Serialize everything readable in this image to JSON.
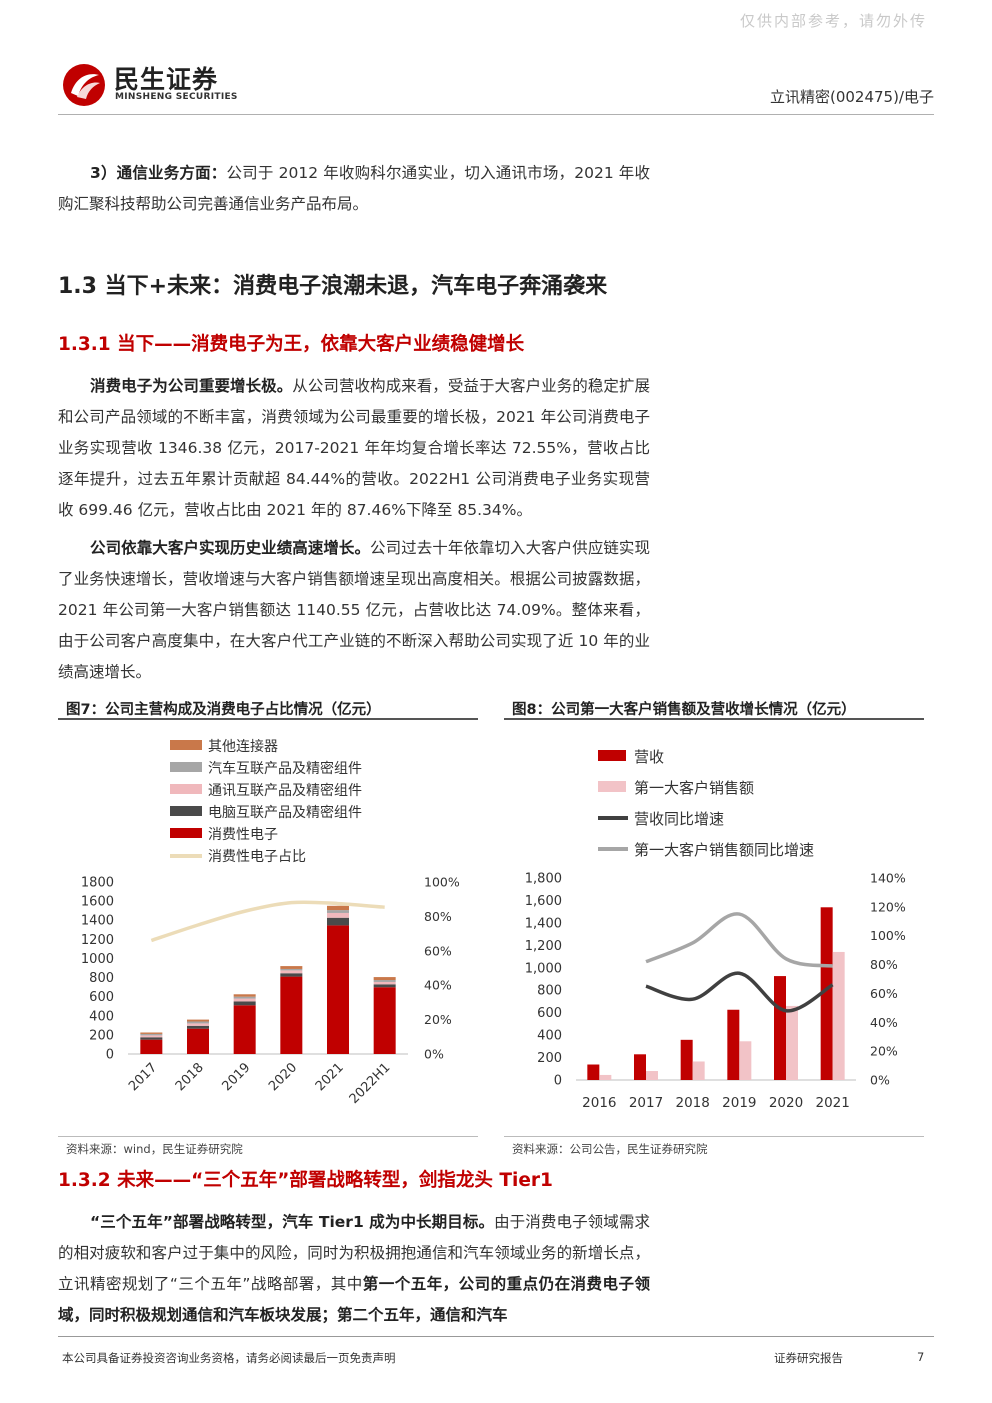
{
  "header": {
    "watermark": "仅供内部参考，请勿外传",
    "logo_cn": "民生证券",
    "logo_en": "MINSHENG SECURITIES",
    "company": "立讯精密(002475)/电子"
  },
  "p_comm": {
    "lead": "3）通信业务方面：",
    "text": "公司于 2012 年收购科尔通实业，切入通讯市场，2021 年收购汇聚科技帮助公司完善通信业务产品布局。"
  },
  "h_1_3": "1.3 当下+未来：消费电子浪潮未退，汽车电子奔涌袭来",
  "h_1_3_1": "1.3.1 当下——消费电子为王，依靠大客户业绩稳健增长",
  "p_consumer": {
    "lead": "消费电子为公司重要增长极。",
    "text": "从公司营收构成来看，受益于大客户业务的稳定扩展和公司产品领域的不断丰富，消费领域为公司最重要的增长极，2021 年公司消费电子业务实现营收 1346.38 亿元，2017-2021 年年均复合增长率达 72.55%，营收占比逐年提升，过去五年累计贡献超 84.44%的营收。2022H1 公司消费电子业务实现营收 699.46 亿元，营收占比由 2021 年的 87.46%下降至 85.34%。"
  },
  "p_client": {
    "lead": "公司依靠大客户实现历史业绩高速增长。",
    "text": "公司过去十年依靠切入大客户供应链实现了业务快速增长，营收增速与大客户销售额增速呈现出高度相关。根据公司披露数据，2021 年公司第一大客户销售额达 1140.55 亿元，占营收比达 74.09%。整体来看，由于公司客户高度集中，在大客户代工产业链的不断深入帮助公司实现了近 10 年的业绩高速增长。"
  },
  "fig7": {
    "title": "图7：公司主营构成及消费电子占比情况（亿元）",
    "source": "资料来源：wind，民生证券研究院"
  },
  "fig8": {
    "title": "图8：公司第一大客户销售额及营收增长情况（亿元）",
    "source": "资料来源：公司公告，民生证券研究院"
  },
  "chart_data": [
    {
      "type": "bar",
      "stacked": true,
      "categories": [
        "2017",
        "2018",
        "2019",
        "2020",
        "2021",
        "2022H1"
      ],
      "series": [
        {
          "name": "消费性电子",
          "color": "#c00000",
          "values": [
            150,
            265,
            510,
            810,
            1346,
            699
          ]
        },
        {
          "name": "电脑互联产品及精密组件",
          "color": "#4a4a4a",
          "values": [
            25,
            30,
            40,
            35,
            80,
            30
          ]
        },
        {
          "name": "通讯互联产品及精密组件",
          "color": "#f0b8bc",
          "values": [
            20,
            25,
            30,
            30,
            50,
            25
          ]
        },
        {
          "name": "汽车互联产品及精密组件",
          "color": "#a6a6a6",
          "values": [
            15,
            20,
            20,
            15,
            30,
            20
          ]
        },
        {
          "name": "其他连接器",
          "color": "#c9784a",
          "values": [
            15,
            20,
            25,
            30,
            45,
            31
          ]
        }
      ],
      "line": {
        "name": "消费性电子占比",
        "color": "#ecdcb8",
        "values": [
          66,
          75,
          83,
          88,
          87.46,
          85.34
        ]
      },
      "ylim": [
        0,
        1800
      ],
      "yticks": [
        "0",
        "200",
        "400",
        "600",
        "800",
        "1000",
        "1200",
        "1400",
        "1600",
        "1800"
      ],
      "y2lim": [
        0,
        100
      ],
      "y2ticks": [
        "0%",
        "20%",
        "40%",
        "60%",
        "80%",
        "100%"
      ],
      "legend_position": "top-left"
    },
    {
      "type": "bar",
      "categories": [
        "2016",
        "2017",
        "2018",
        "2019",
        "2020",
        "2021"
      ],
      "series": [
        {
          "name": "营收",
          "color": "#c00000",
          "values": [
            138,
            229,
            358,
            626,
            926,
            1539
          ]
        },
        {
          "name": "第一大客户销售额",
          "color": "#f2c3c7",
          "values": [
            45,
            80,
            165,
            345,
            660,
            1141
          ]
        }
      ],
      "lines": [
        {
          "name": "营收同比增速",
          "color": "#404040",
          "values": [
            65,
            56,
            74,
            48,
            66
          ]
        },
        {
          "name": "第一大客户销售额同比增速",
          "color": "#a6a6a6",
          "values": [
            82,
            95,
            115,
            84,
            79
          ]
        }
      ],
      "line_x_categories": [
        "2017",
        "2018",
        "2019",
        "2020",
        "2021"
      ],
      "ylim": [
        0,
        1800
      ],
      "yticks": [
        "0",
        "200",
        "400",
        "600",
        "800",
        "1,000",
        "1,200",
        "1,400",
        "1,600",
        "1,800"
      ],
      "y2lim": [
        0,
        140
      ],
      "y2ticks": [
        "0%",
        "20%",
        "40%",
        "60%",
        "80%",
        "100%",
        "120%",
        "140%"
      ],
      "legend_position": "top-left"
    }
  ],
  "h_1_3_2": "1.3.2 未来——“三个五年”部署战略转型，剑指龙头 Tier1",
  "p_future": {
    "lead": "“三个五年”部署战略转型，汽车 Tier1 成为中长期目标。",
    "text1": "由于消费电子领域需求的相对疲软和客户过于集中的风险，同时为积极拥抱通信和汽车领域业务的新增长点，立讯精密规划了“三个五年”战略部署，其中",
    "bold2": "第一个五年，公司的重点仍在消费电子领域，同时积极规划通信和汽车板块发展；第二个五年，通信和汽车"
  },
  "footer": {
    "disclaimer": "本公司具备证券投资咨询业务资格，请务必阅读最后一页免责声明",
    "report_type": "证券研究报告",
    "page": "7"
  }
}
